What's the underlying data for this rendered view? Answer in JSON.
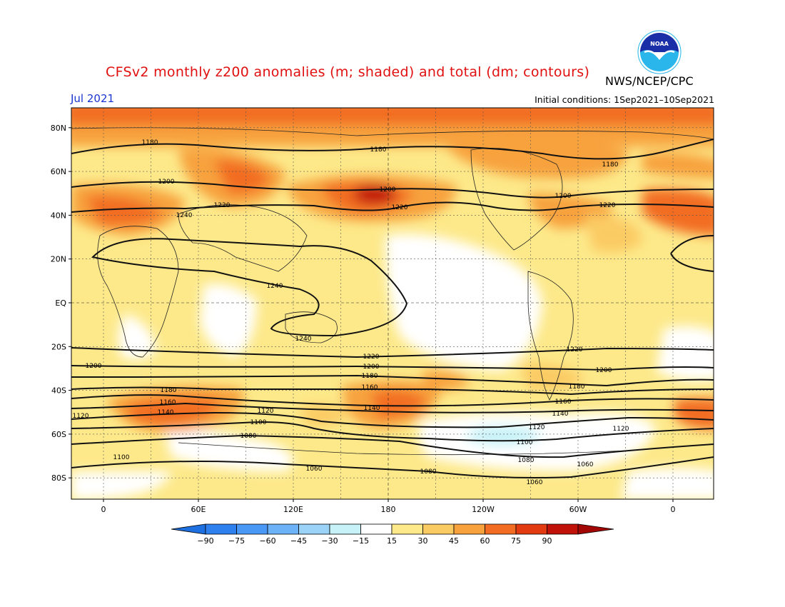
{
  "header": {
    "title": "CFSv2 monthly z200 anomalies (m; shaded) and total (dm; contours)",
    "agency": "NWS/NCEP/CPC",
    "month": "Jul 2021",
    "initial_conditions": "Initial conditions: 1Sep2021–10Sep2021"
  },
  "logo": {
    "icon": "noaa-logo",
    "text": "NOAA"
  },
  "axes": {
    "lat_labels": [
      "80N",
      "60N",
      "40N",
      "20N",
      "EQ",
      "20S",
      "40S",
      "60S",
      "80S"
    ],
    "lon_labels": [
      "0",
      "60E",
      "120E",
      "180",
      "120W",
      "60W",
      "0"
    ]
  },
  "colorbar": {
    "ticks": [
      "−90",
      "−75",
      "−60",
      "−45",
      "−30",
      "−15",
      "15",
      "30",
      "45",
      "60",
      "75",
      "90"
    ],
    "colors": [
      "#1e6fe0",
      "#2f80ef",
      "#4a98f5",
      "#6cb2f7",
      "#9ad2f8",
      "#c6f2f8",
      "#ffffff",
      "#fde98a",
      "#fbcb63",
      "#f7a23c",
      "#f26d23",
      "#e23b12",
      "#c01208",
      "#a30705"
    ]
  },
  "contour_labels": [
    "1180",
    "1180",
    "1180",
    "1200",
    "1200",
    "1200",
    "1220",
    "1220",
    "1220",
    "1240",
    "1240",
    "1240",
    "1220",
    "1200",
    "1180",
    "1160",
    "1140",
    "1120",
    "1100",
    "1080",
    "1060",
    "1220",
    "1200",
    "1180",
    "1160",
    "1140",
    "1120",
    "1100",
    "1080",
    "1060",
    "1200",
    "1180",
    "1160",
    "1140",
    "1120",
    "1100",
    "1080",
    "1060",
    "1120"
  ]
}
